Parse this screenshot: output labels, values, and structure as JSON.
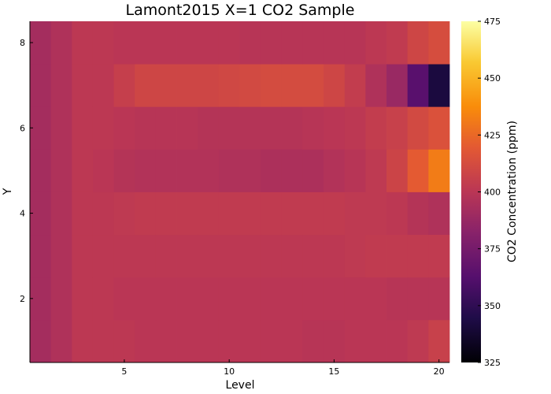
{
  "chart_data": {
    "type": "heatmap",
    "title": "Lamont2015 X=1 CO2 Sample",
    "xlabel": "Level",
    "ylabel": "Y",
    "colorbar_label": "CO2 Concentration (ppm)",
    "colormap": "inferno",
    "clim": [
      325,
      475
    ],
    "xlim": [
      0.5,
      20.5
    ],
    "ylim": [
      0.5,
      8.5
    ],
    "x": [
      1,
      2,
      3,
      4,
      5,
      6,
      7,
      8,
      9,
      10,
      11,
      12,
      13,
      14,
      15,
      16,
      17,
      18,
      19,
      20
    ],
    "y": [
      1,
      2,
      3,
      4,
      5,
      6,
      7,
      8
    ],
    "x_ticks": [
      5,
      10,
      15,
      20
    ],
    "y_ticks": [
      2,
      4,
      6,
      8
    ],
    "colorbar_ticks": [
      325,
      350,
      375,
      400,
      425,
      450,
      475
    ],
    "grid": false,
    "values": [
      [
        392,
        396,
        401,
        401,
        401,
        400,
        400,
        400,
        400,
        400,
        400,
        400,
        400,
        399,
        399,
        400,
        400,
        400,
        402,
        406
      ],
      [
        392,
        396,
        401,
        401,
        400,
        400,
        400,
        400,
        400,
        400,
        400,
        400,
        400,
        400,
        400,
        400,
        400,
        399,
        399,
        399
      ],
      [
        392,
        396,
        401,
        401,
        401,
        401,
        401,
        401,
        401,
        401,
        401,
        401,
        401,
        401,
        401,
        402,
        403,
        403,
        403,
        403
      ],
      [
        392,
        396,
        401,
        401,
        402,
        403,
        403,
        403,
        403,
        403,
        403,
        403,
        403,
        403,
        403,
        402,
        402,
        401,
        398,
        396
      ],
      [
        392,
        396,
        401,
        400,
        398,
        397,
        397,
        397,
        397,
        396,
        396,
        395,
        395,
        395,
        397,
        399,
        402,
        408,
        420,
        432
      ],
      [
        392,
        396,
        401,
        401,
        400,
        399,
        399,
        399,
        398,
        398,
        398,
        398,
        398,
        399,
        400,
        401,
        404,
        406,
        411,
        415
      ],
      [
        392,
        396,
        401,
        401,
        405,
        409,
        409,
        409,
        409,
        410,
        411,
        412,
        412,
        412,
        409,
        404,
        396,
        388,
        364,
        342
      ],
      [
        392,
        396,
        401,
        401,
        400,
        400,
        400,
        400,
        400,
        400,
        399,
        399,
        399,
        399,
        399,
        399,
        401,
        403,
        409,
        413
      ]
    ]
  }
}
